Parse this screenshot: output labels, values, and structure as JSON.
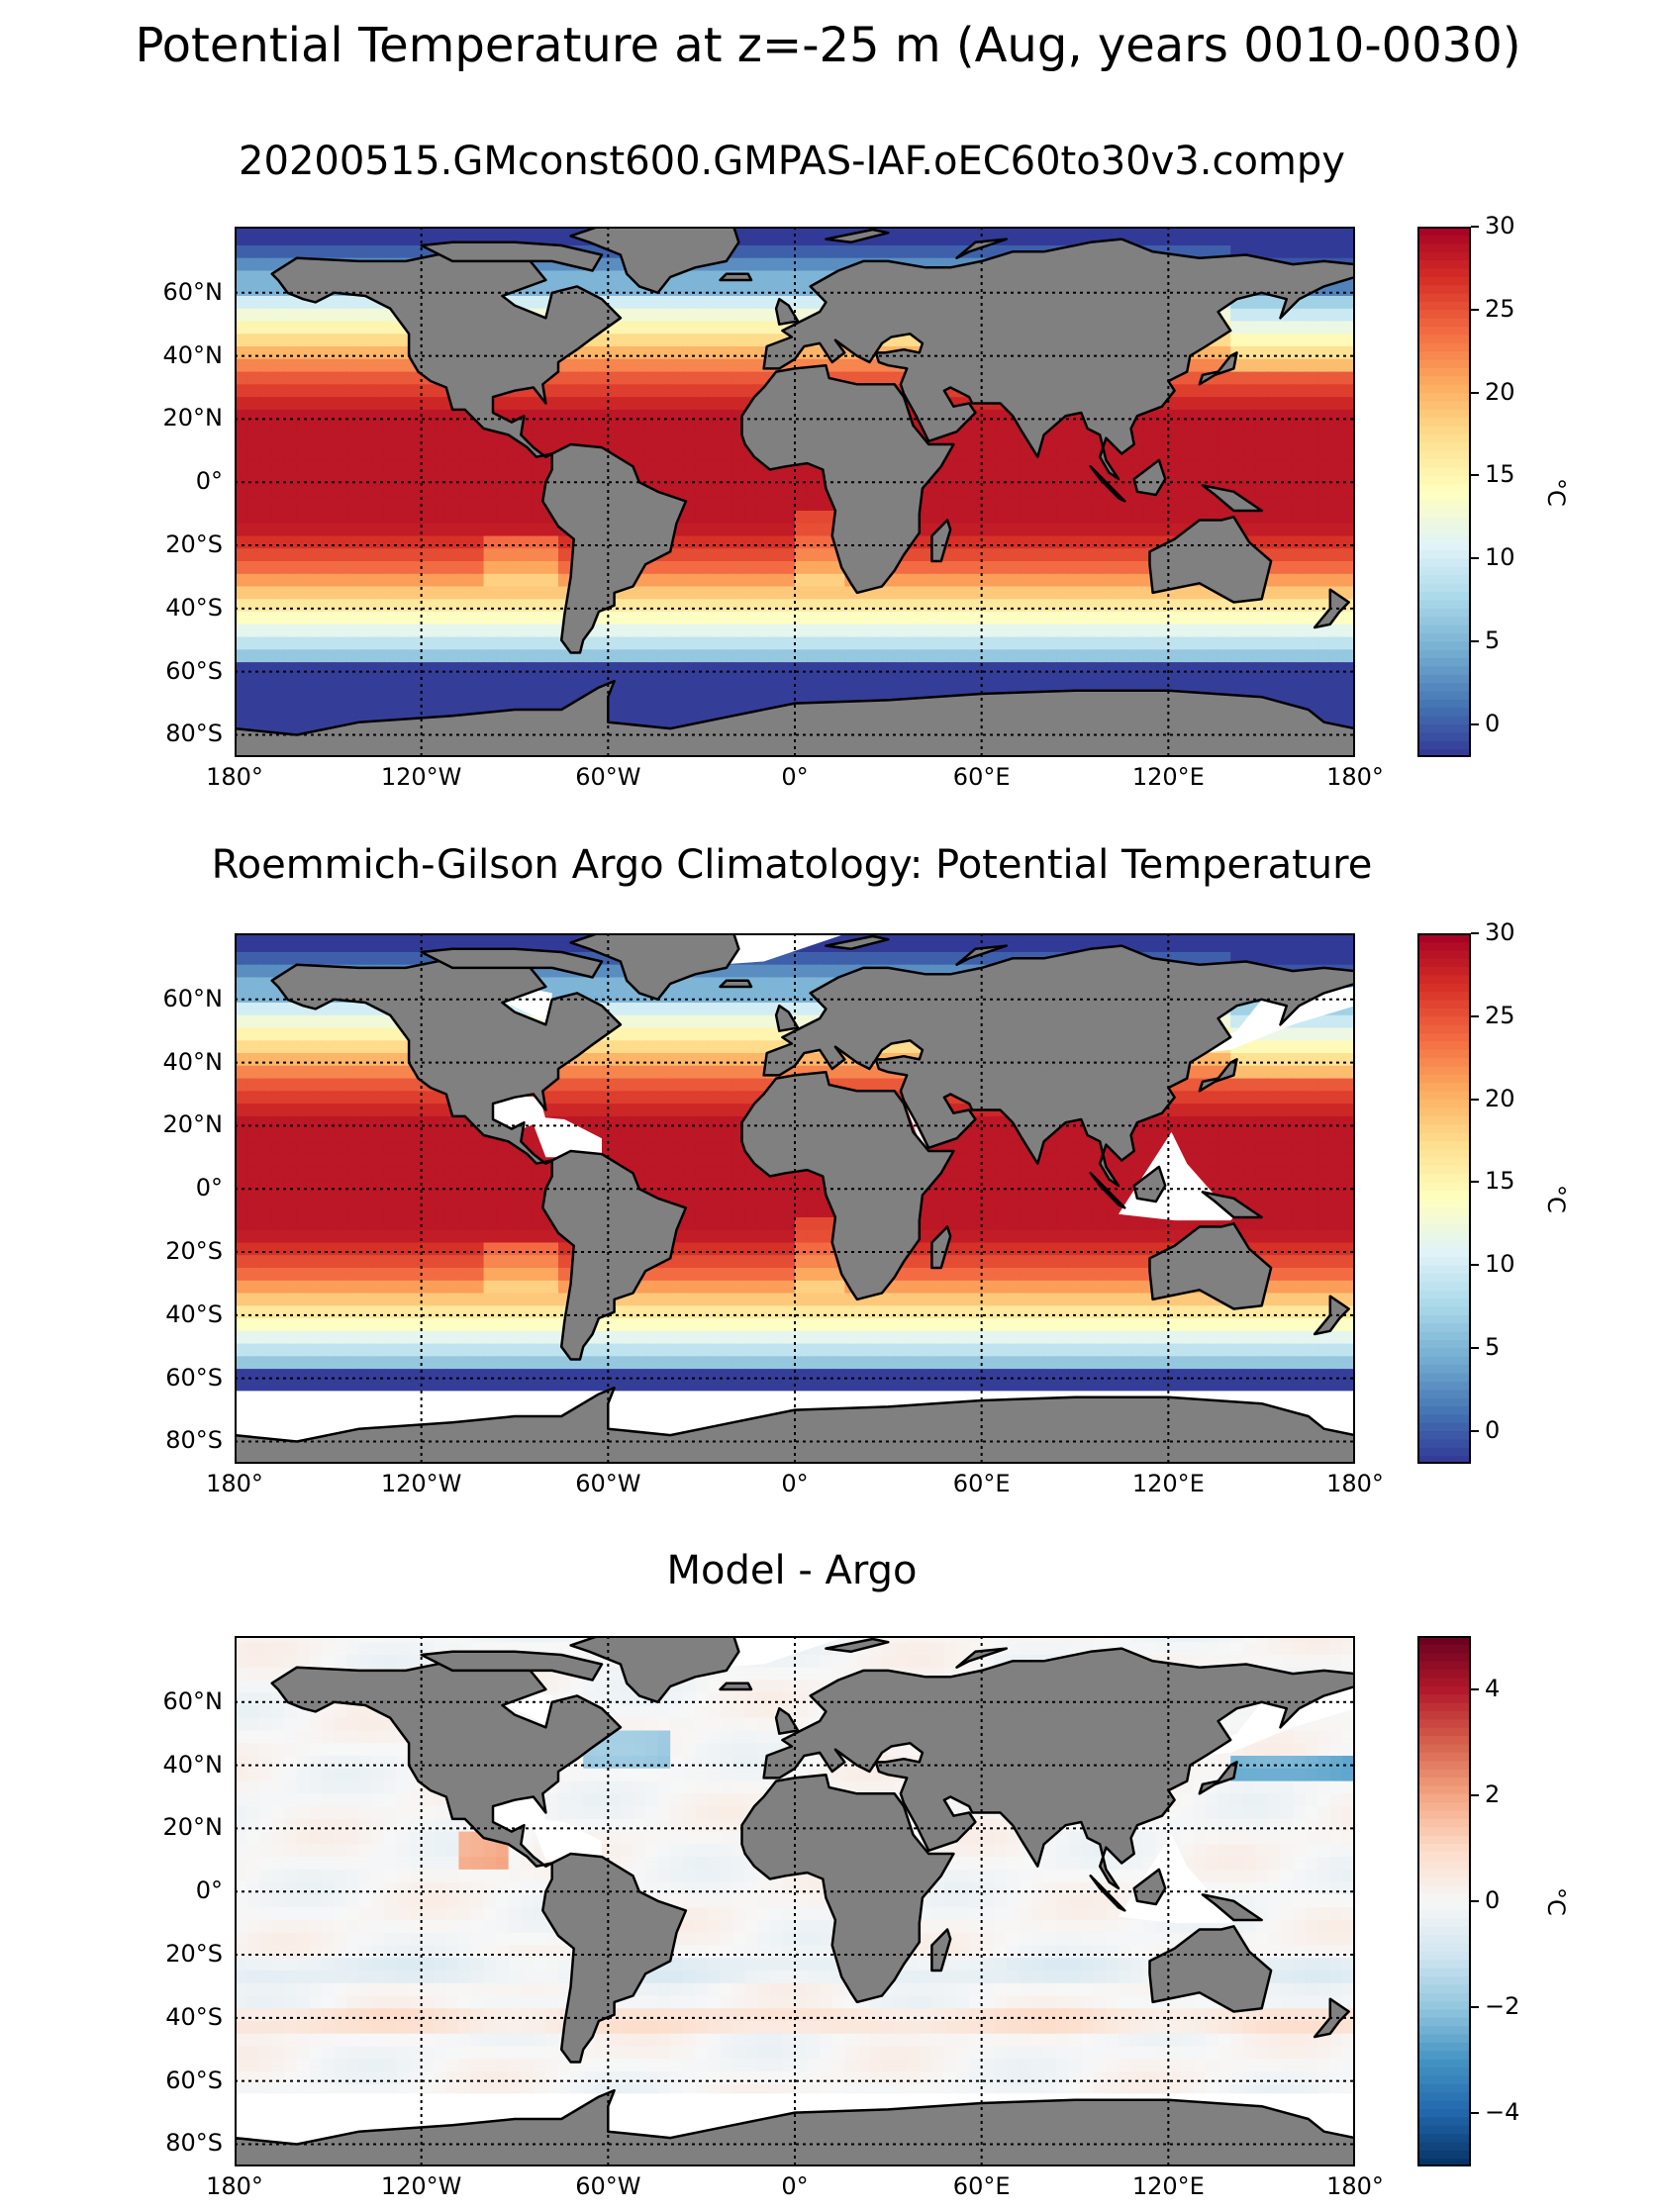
{
  "figure": {
    "suptitle": "Potential Temperature at z=-25 m (Aug, years 0010-0030)",
    "lat_labels": [
      "60°N",
      "40°N",
      "20°N",
      "0°",
      "20°S",
      "40°S",
      "60°S",
      "80°S"
    ],
    "lon_labels": [
      "180°",
      "120°W",
      "60°W",
      "0°",
      "60°E",
      "120°E",
      "180°"
    ],
    "land_color": "#808080"
  },
  "panels": [
    {
      "title": "20200515.GMconst600.GMPAS-IAF.oEC60to30v3.compy",
      "field": "model",
      "colormap": "RdYlBu_r",
      "colorbar": {
        "min": -2,
        "max": 30,
        "ticks": [
          "30",
          "25",
          "20",
          "15",
          "10",
          "5",
          "0"
        ],
        "tick_values": [
          30,
          25,
          20,
          15,
          10,
          5,
          0
        ],
        "unit": "°C"
      }
    },
    {
      "title": "Roemmich-Gilson Argo Climatology: Potential Temperature",
      "field": "observation",
      "colormap": "RdYlBu_r",
      "colorbar": {
        "min": -2,
        "max": 30,
        "ticks": [
          "30",
          "25",
          "20",
          "15",
          "10",
          "5",
          "0"
        ],
        "tick_values": [
          30,
          25,
          20,
          15,
          10,
          5,
          0
        ],
        "unit": "°C"
      }
    },
    {
      "title": "Model - Argo",
      "field": "difference",
      "colormap": "RdBu_r",
      "colorbar": {
        "min": -5,
        "max": 5,
        "ticks": [
          "4",
          "2",
          "0",
          "−2",
          "−4"
        ],
        "tick_values": [
          4,
          2,
          0,
          -2,
          -4
        ],
        "unit": "°C"
      }
    }
  ]
}
